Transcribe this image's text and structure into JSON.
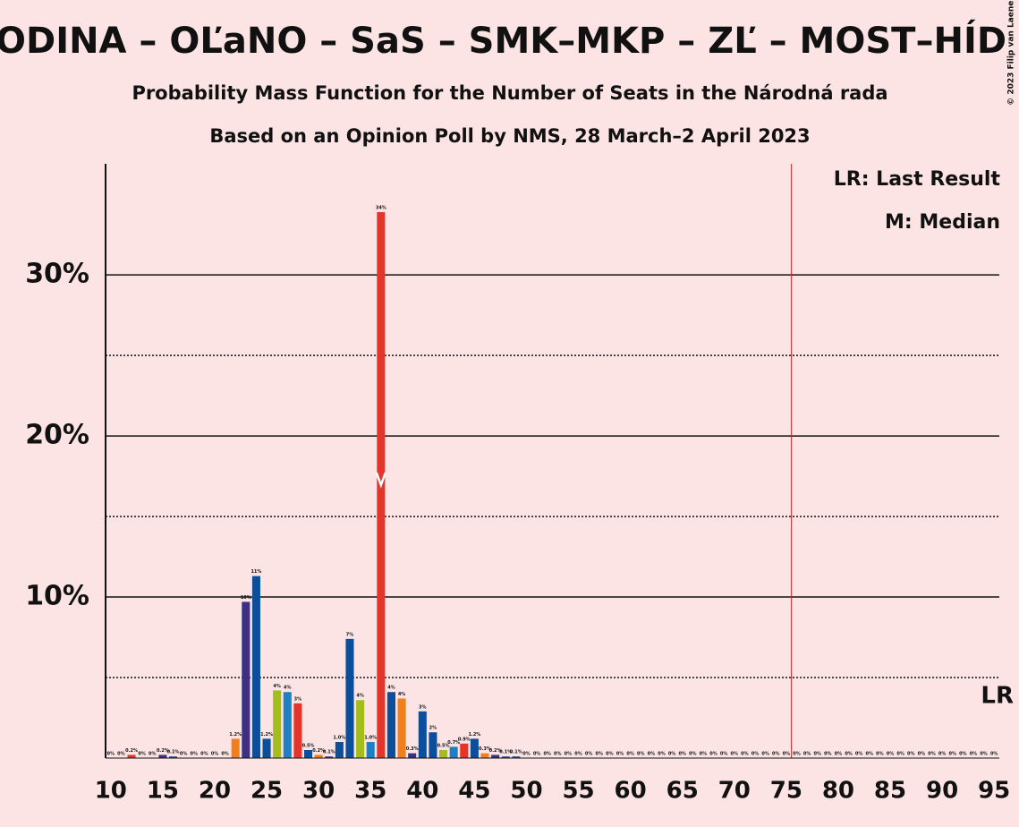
{
  "chart_data": {
    "type": "bar",
    "title": "ODINA – OĽaNO – SaS – SMK–MKP – ZĽ – MOST–HÍD",
    "subtitle": "Probability Mass Function for the Number of Seats in the Národná rada",
    "subtitle2": "Based on an Opinion Poll by NMS, 28 March–2 April 2023",
    "copyright": "© 2023 Filip van Laenen",
    "legend": [
      "LR: Last Result",
      "M: Median"
    ],
    "last_result_label": "LR",
    "last_result": 76,
    "median": 36,
    "x": [
      10,
      11,
      12,
      13,
      14,
      15,
      16,
      17,
      18,
      19,
      20,
      21,
      22,
      23,
      24,
      25,
      26,
      27,
      28,
      29,
      30,
      31,
      32,
      33,
      34,
      35,
      36,
      37,
      38,
      39,
      40,
      41,
      42,
      43,
      44,
      45,
      46,
      47,
      48,
      49,
      50,
      51,
      52,
      53,
      54,
      55,
      56,
      57,
      58,
      59,
      60,
      61,
      62,
      63,
      64,
      65,
      66,
      67,
      68,
      69,
      70,
      71,
      72,
      73,
      74,
      75,
      76,
      77,
      78,
      79,
      80,
      81,
      82,
      83,
      84,
      85,
      86,
      87,
      88,
      89,
      90,
      91,
      92,
      93,
      94,
      95
    ],
    "values": [
      0,
      0,
      0.2,
      0,
      0,
      0.2,
      0.1,
      0,
      0,
      0,
      0,
      0,
      1.2,
      9.7,
      11.3,
      1.2,
      4.2,
      4.1,
      3.4,
      0.5,
      0.2,
      0.1,
      1.0,
      7.4,
      3.6,
      1.0,
      33.9,
      4.1,
      3.7,
      0.3,
      2.9,
      1.6,
      0.5,
      0.7,
      0.9,
      1.2,
      0.3,
      0.2,
      0.1,
      0.1,
      0,
      0,
      0,
      0,
      0,
      0,
      0,
      0,
      0,
      0,
      0,
      0,
      0,
      0,
      0,
      0,
      0,
      0,
      0,
      0,
      0,
      0,
      0,
      0,
      0,
      0,
      0,
      0,
      0,
      0,
      0,
      0,
      0,
      0,
      0,
      0,
      0,
      0,
      0,
      0,
      0,
      0,
      0,
      0,
      0,
      0
    ],
    "value_labels": [
      "0%",
      "0%",
      "0.2%",
      "0%",
      "0%",
      "0.2%",
      "0.1%",
      "0%",
      "0%",
      "0%",
      "0%",
      "0%",
      "1.2%",
      "10%",
      "11%",
      "1.2%",
      "4%",
      "4%",
      "3%",
      "0.5%",
      "0.2%",
      "0.1%",
      "1.0%",
      "7%",
      "4%",
      "1.0%",
      "34%",
      "4%",
      "4%",
      "0.3%",
      "3%",
      "2%",
      "0.5%",
      "0.7%",
      "0.9%",
      "1.2%",
      "0.3%",
      "0.2%",
      "0.1%",
      "0.1%",
      "0%",
      "0%",
      "0%",
      "0%",
      "0%",
      "0%",
      "0%",
      "0%",
      "0%",
      "0%",
      "0%",
      "0%",
      "0%",
      "0%",
      "0%",
      "0%",
      "0%",
      "0%",
      "0%",
      "0%",
      "0%",
      "0%",
      "0%",
      "0%",
      "0%",
      "0%",
      "0%",
      "0%",
      "0%",
      "0%",
      "0%",
      "0%",
      "0%",
      "0%",
      "0%",
      "0%",
      "0%",
      "0%",
      "0%",
      "0%",
      "0%",
      "0%",
      "0%",
      "0%",
      "0%",
      "0%"
    ],
    "palette": [
      "#a3be1a",
      "#1f7fc4",
      "#e5352a",
      "#0b4f9c",
      "#f07f1e",
      "#3d3082",
      "#0b4f9c",
      "#0b4f9c"
    ],
    "lr_color": "#d6191c",
    "xlim": [
      9.5,
      95.5
    ],
    "xticks": [
      10,
      15,
      20,
      25,
      30,
      35,
      40,
      45,
      50,
      55,
      60,
      65,
      70,
      75,
      80,
      85,
      90,
      95
    ],
    "ylim": [
      0,
      36.9
    ],
    "yticks": [
      {
        "value": 10,
        "label": "10%"
      },
      {
        "value": 20,
        "label": "20%"
      },
      {
        "value": 30,
        "label": "30%"
      }
    ],
    "minor_yticks": [
      5,
      15,
      25
    ],
    "grid": true
  }
}
